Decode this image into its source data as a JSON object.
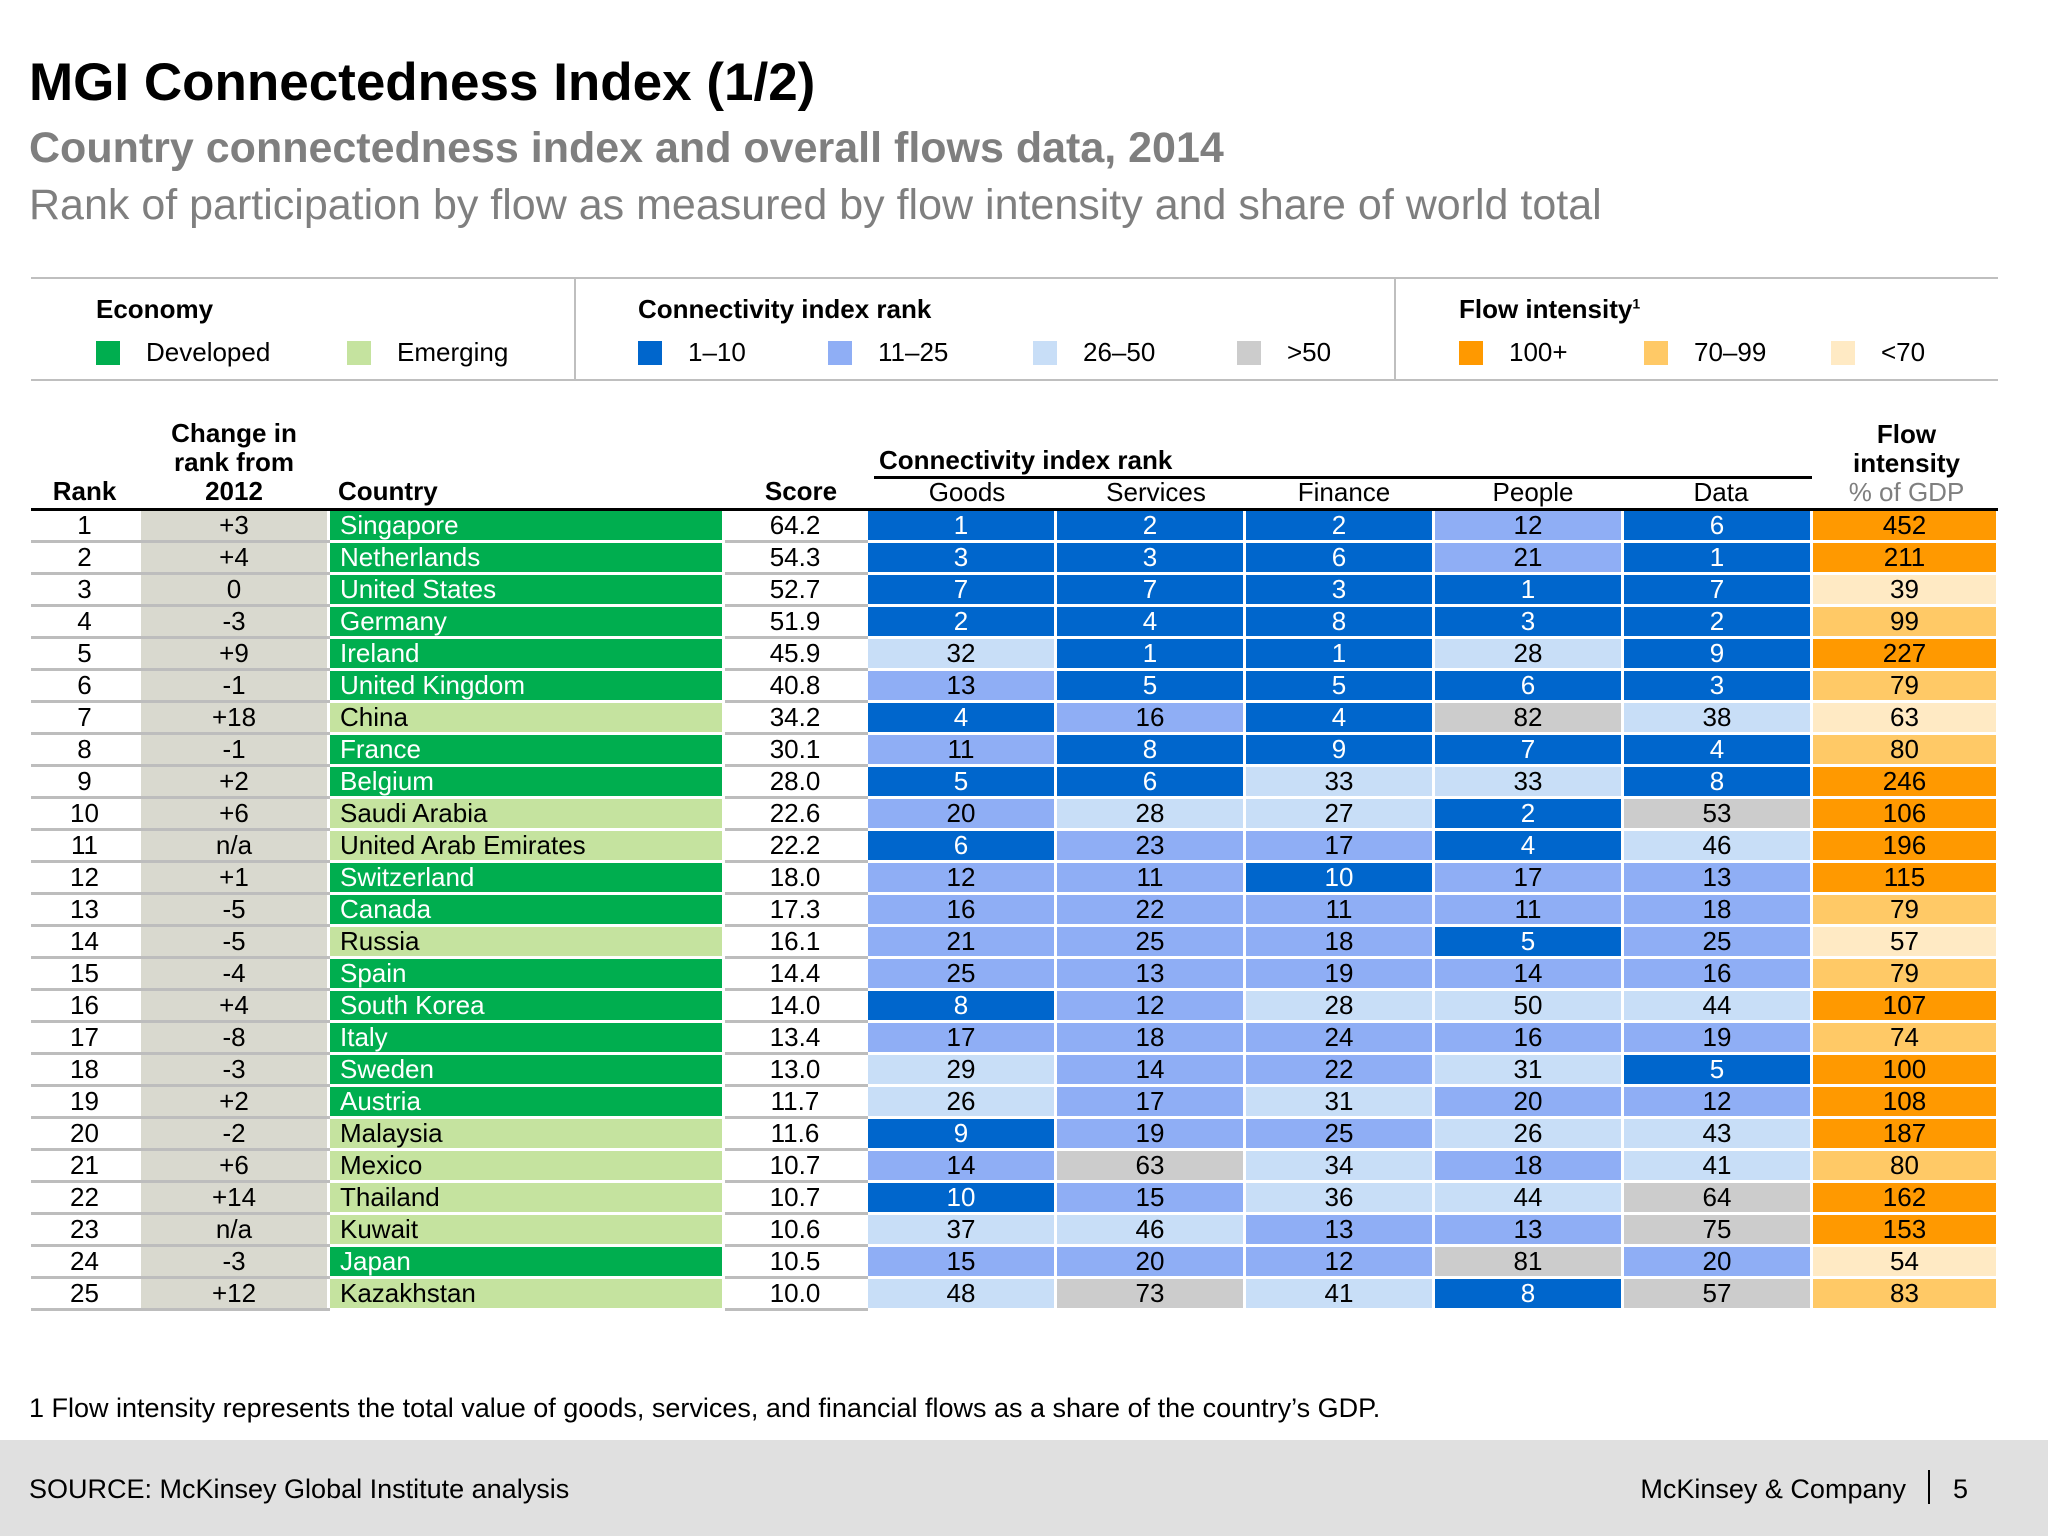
{
  "header": {
    "title": "MGI Connectedness Index (1/2)",
    "subtitle": "Country connectedness index and overall flows data, 2014",
    "description": "Rank of participation by flow as measured by flow intensity and share of world total"
  },
  "legend": {
    "economy": {
      "heading": "Economy",
      "items": [
        {
          "label": "Developed",
          "color": "#00AE4F"
        },
        {
          "label": "Emerging",
          "color": "#C5E39F"
        }
      ]
    },
    "connectivity": {
      "heading": "Connectivity index rank",
      "items": [
        {
          "label": "1–10",
          "color": "#0066CC"
        },
        {
          "label": "11–25",
          "color": "#8FAEF5"
        },
        {
          "label": "26–50",
          "color": "#C8DEF7"
        },
        {
          "label": ">50",
          "color": "#CCCCCC"
        }
      ]
    },
    "flow": {
      "heading": "Flow intensity",
      "footnote_marker": "1",
      "items": [
        {
          "label": "100+",
          "color": "#FF9900"
        },
        {
          "label": "70–99",
          "color": "#FFC966"
        },
        {
          "label": "<70",
          "color": "#FFEAC4"
        }
      ]
    }
  },
  "table": {
    "headers": {
      "rank": "Rank",
      "change": [
        "Change in",
        "rank from",
        "2012"
      ],
      "country": "Country",
      "score": "Score",
      "group": "Connectivity index rank",
      "goods": "Goods",
      "services": "Services",
      "finance": "Finance",
      "people": "People",
      "data": "Data",
      "flow": [
        "Flow",
        "intensity"
      ],
      "flow_unit": "% of GDP"
    },
    "rows": [
      {
        "rank": "1",
        "change": "+3",
        "country": "Singapore",
        "economy": "Developed",
        "score": "64.2",
        "ranks": [
          "1",
          "2",
          "2",
          "12",
          "6"
        ],
        "flow": "452"
      },
      {
        "rank": "2",
        "change": "+4",
        "country": "Netherlands",
        "economy": "Developed",
        "score": "54.3",
        "ranks": [
          "3",
          "3",
          "6",
          "21",
          "1"
        ],
        "flow": "211"
      },
      {
        "rank": "3",
        "change": "0",
        "country": "United States",
        "economy": "Developed",
        "score": "52.7",
        "ranks": [
          "7",
          "7",
          "3",
          "1",
          "7"
        ],
        "flow": "39"
      },
      {
        "rank": "4",
        "change": "-3",
        "country": "Germany",
        "economy": "Developed",
        "score": "51.9",
        "ranks": [
          "2",
          "4",
          "8",
          "3",
          "2"
        ],
        "flow": "99"
      },
      {
        "rank": "5",
        "change": "+9",
        "country": "Ireland",
        "economy": "Developed",
        "score": "45.9",
        "ranks": [
          "32",
          "1",
          "1",
          "28",
          "9"
        ],
        "flow": "227"
      },
      {
        "rank": "6",
        "change": "-1",
        "country": "United Kingdom",
        "economy": "Developed",
        "score": "40.8",
        "ranks": [
          "13",
          "5",
          "5",
          "6",
          "3"
        ],
        "flow": "79"
      },
      {
        "rank": "7",
        "change": "+18",
        "country": "China",
        "economy": "Emerging",
        "score": "34.2",
        "ranks": [
          "4",
          "16",
          "4",
          "82",
          "38"
        ],
        "flow": "63"
      },
      {
        "rank": "8",
        "change": "-1",
        "country": "France",
        "economy": "Developed",
        "score": "30.1",
        "ranks": [
          "11",
          "8",
          "9",
          "7",
          "4"
        ],
        "flow": "80"
      },
      {
        "rank": "9",
        "change": "+2",
        "country": "Belgium",
        "economy": "Developed",
        "score": "28.0",
        "ranks": [
          "5",
          "6",
          "33",
          "33",
          "8"
        ],
        "flow": "246"
      },
      {
        "rank": "10",
        "change": "+6",
        "country": "Saudi Arabia",
        "economy": "Emerging",
        "score": "22.6",
        "ranks": [
          "20",
          "28",
          "27",
          "2",
          "53"
        ],
        "flow": "106"
      },
      {
        "rank": "11",
        "change": "n/a",
        "country": "United Arab Emirates",
        "economy": "Emerging",
        "score": "22.2",
        "ranks": [
          "6",
          "23",
          "17",
          "4",
          "46"
        ],
        "flow": "196"
      },
      {
        "rank": "12",
        "change": "+1",
        "country": "Switzerland",
        "economy": "Developed",
        "score": "18.0",
        "ranks": [
          "12",
          "11",
          "10",
          "17",
          "13"
        ],
        "flow": "115"
      },
      {
        "rank": "13",
        "change": "-5",
        "country": "Canada",
        "economy": "Developed",
        "score": "17.3",
        "ranks": [
          "16",
          "22",
          "11",
          "11",
          "18"
        ],
        "flow": "79"
      },
      {
        "rank": "14",
        "change": "-5",
        "country": "Russia",
        "economy": "Emerging",
        "score": "16.1",
        "ranks": [
          "21",
          "25",
          "18",
          "5",
          "25"
        ],
        "flow": "57"
      },
      {
        "rank": "15",
        "change": "-4",
        "country": "Spain",
        "economy": "Developed",
        "score": "14.4",
        "ranks": [
          "25",
          "13",
          "19",
          "14",
          "16"
        ],
        "flow": "79"
      },
      {
        "rank": "16",
        "change": "+4",
        "country": "South Korea",
        "economy": "Developed",
        "score": "14.0",
        "ranks": [
          "8",
          "12",
          "28",
          "50",
          "44"
        ],
        "flow": "107"
      },
      {
        "rank": "17",
        "change": "-8",
        "country": "Italy",
        "economy": "Developed",
        "score": "13.4",
        "ranks": [
          "17",
          "18",
          "24",
          "16",
          "19"
        ],
        "flow": "74"
      },
      {
        "rank": "18",
        "change": "-3",
        "country": "Sweden",
        "economy": "Developed",
        "score": "13.0",
        "ranks": [
          "29",
          "14",
          "22",
          "31",
          "5"
        ],
        "flow": "100"
      },
      {
        "rank": "19",
        "change": "+2",
        "country": "Austria",
        "economy": "Developed",
        "score": "11.7",
        "ranks": [
          "26",
          "17",
          "31",
          "20",
          "12"
        ],
        "flow": "108"
      },
      {
        "rank": "20",
        "change": "-2",
        "country": "Malaysia",
        "economy": "Emerging",
        "score": "11.6",
        "ranks": [
          "9",
          "19",
          "25",
          "26",
          "43"
        ],
        "flow": "187"
      },
      {
        "rank": "21",
        "change": "+6",
        "country": "Mexico",
        "economy": "Emerging",
        "score": "10.7",
        "ranks": [
          "14",
          "63",
          "34",
          "18",
          "41"
        ],
        "flow": "80"
      },
      {
        "rank": "22",
        "change": "+14",
        "country": "Thailand",
        "economy": "Emerging",
        "score": "10.7",
        "ranks": [
          "10",
          "15",
          "36",
          "44",
          "64"
        ],
        "flow": "162"
      },
      {
        "rank": "23",
        "change": "n/a",
        "country": "Kuwait",
        "economy": "Emerging",
        "score": "10.6",
        "ranks": [
          "37",
          "46",
          "13",
          "13",
          "75"
        ],
        "flow": "153"
      },
      {
        "rank": "24",
        "change": "-3",
        "country": "Japan",
        "economy": "Developed",
        "score": "10.5",
        "ranks": [
          "15",
          "20",
          "12",
          "81",
          "20"
        ],
        "flow": "54"
      },
      {
        "rank": "25",
        "change": "+12",
        "country": "Kazakhstan",
        "economy": "Emerging",
        "score": "10.0",
        "ranks": [
          "48",
          "73",
          "41",
          "8",
          "57"
        ],
        "flow": "83"
      }
    ]
  },
  "footnote": "1 Flow intensity represents the total value of goods, services, and financial flows as a share of the country’s GDP.",
  "footer": {
    "source": "SOURCE: McKinsey Global Institute analysis",
    "brand": "McKinsey & Company",
    "page": "5"
  }
}
